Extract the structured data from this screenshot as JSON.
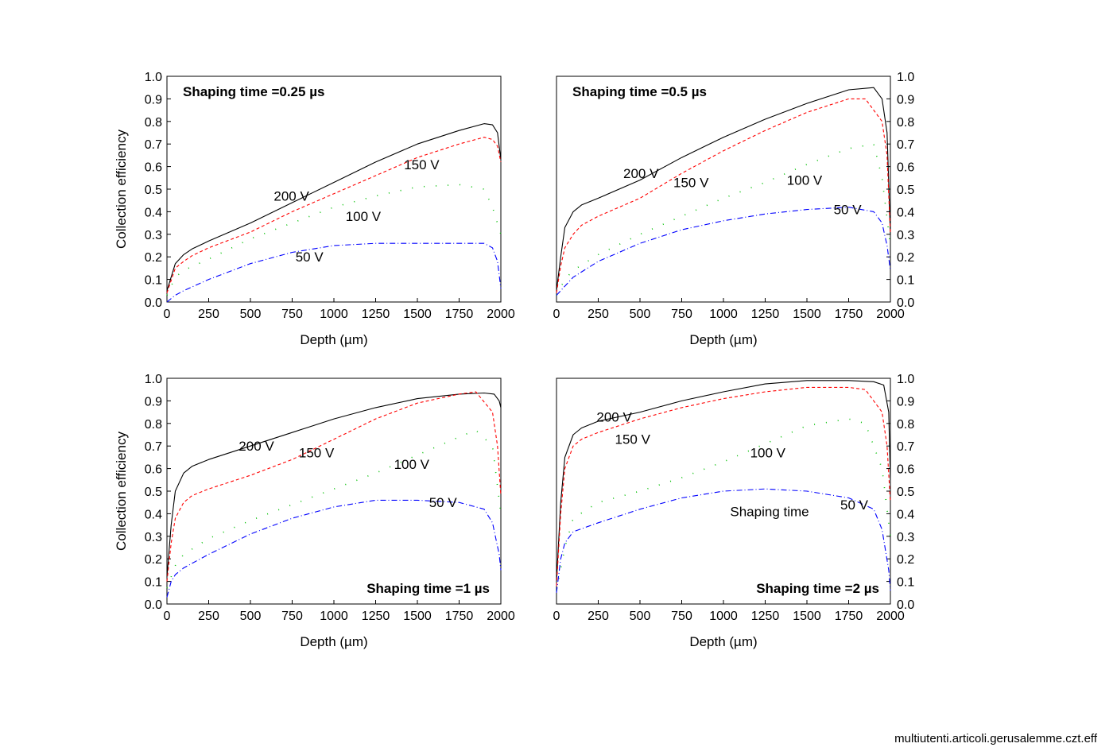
{
  "footer": "multiutenti.articoli.gerusalemme.czt.eff",
  "colors": {
    "200 V": "#000000",
    "150 V": "#ff0000",
    "100 V": "#00c000",
    "50 V": "#0000ff"
  },
  "chart_data": [
    {
      "type": "line",
      "title": "Shaping time =0.25 µs",
      "title_position": "top-left",
      "xlabel": "Depth (µm)",
      "ylabel": "Collection efficiency",
      "xlim": [
        0,
        2000
      ],
      "ylim": [
        0,
        1.0
      ],
      "xticks": [
        0,
        250,
        500,
        750,
        1000,
        1250,
        1500,
        1750,
        2000
      ],
      "yticks": [
        0.0,
        0.1,
        0.2,
        0.3,
        0.4,
        0.5,
        0.6,
        0.7,
        0.8,
        0.9,
        1.0
      ],
      "y_axis_side": "left",
      "series": [
        {
          "name": "200 V",
          "x": [
            0,
            50,
            100,
            150,
            250,
            500,
            750,
            1000,
            1250,
            1500,
            1750,
            1900,
            1950,
            1980,
            2000
          ],
          "y": [
            0.05,
            0.17,
            0.21,
            0.235,
            0.27,
            0.35,
            0.44,
            0.53,
            0.62,
            0.7,
            0.76,
            0.79,
            0.785,
            0.75,
            0.63
          ]
        },
        {
          "name": "150 V",
          "x": [
            0,
            50,
            100,
            150,
            250,
            500,
            750,
            1000,
            1250,
            1500,
            1750,
            1900,
            1950,
            1980,
            2000
          ],
          "y": [
            0.04,
            0.15,
            0.18,
            0.205,
            0.24,
            0.31,
            0.4,
            0.48,
            0.56,
            0.64,
            0.7,
            0.73,
            0.72,
            0.69,
            0.62
          ]
        },
        {
          "name": "100 V",
          "x": [
            0,
            50,
            100,
            250,
            500,
            750,
            1000,
            1250,
            1500,
            1750,
            1900,
            1950,
            2000
          ],
          "y": [
            0.03,
            0.11,
            0.14,
            0.19,
            0.28,
            0.35,
            0.42,
            0.47,
            0.51,
            0.52,
            0.5,
            0.42,
            0.3
          ]
        },
        {
          "name": "50 V",
          "x": [
            0,
            50,
            100,
            250,
            500,
            750,
            1000,
            1250,
            1500,
            1750,
            1900,
            1950,
            1980,
            2000
          ],
          "y": [
            0.0,
            0.03,
            0.05,
            0.1,
            0.17,
            0.22,
            0.25,
            0.26,
            0.26,
            0.26,
            0.26,
            0.24,
            0.18,
            0.06
          ]
        }
      ],
      "annotations": [
        {
          "text": "200 V",
          "x": 640,
          "y": 0.47
        },
        {
          "text": "150 V",
          "x": 1420,
          "y": 0.61
        },
        {
          "text": "100 V",
          "x": 1070,
          "y": 0.38
        },
        {
          "text": "50 V",
          "x": 770,
          "y": 0.2
        }
      ]
    },
    {
      "type": "line",
      "title": "Shaping time =0.5 µs",
      "title_position": "top-left",
      "xlabel": "Depth (µm)",
      "ylabel": "",
      "xlim": [
        0,
        2000
      ],
      "ylim": [
        0,
        1.0
      ],
      "xticks": [
        0,
        250,
        500,
        750,
        1000,
        1250,
        1500,
        1750,
        2000
      ],
      "yticks": [
        0.0,
        0.1,
        0.2,
        0.3,
        0.4,
        0.5,
        0.6,
        0.7,
        0.8,
        0.9,
        1.0
      ],
      "y_axis_side": "right",
      "series": [
        {
          "name": "200 V",
          "x": [
            0,
            25,
            50,
            100,
            150,
            250,
            500,
            750,
            1000,
            1250,
            1500,
            1750,
            1900,
            1950,
            1980,
            2000
          ],
          "y": [
            0.05,
            0.2,
            0.33,
            0.4,
            0.43,
            0.46,
            0.54,
            0.64,
            0.73,
            0.81,
            0.88,
            0.94,
            0.95,
            0.9,
            0.75,
            0.3
          ]
        },
        {
          "name": "150 V",
          "x": [
            0,
            25,
            50,
            100,
            150,
            250,
            500,
            750,
            1000,
            1250,
            1500,
            1750,
            1850,
            1950,
            1980,
            2000
          ],
          "y": [
            0.04,
            0.16,
            0.24,
            0.3,
            0.34,
            0.38,
            0.46,
            0.57,
            0.67,
            0.76,
            0.84,
            0.9,
            0.9,
            0.8,
            0.65,
            0.3
          ]
        },
        {
          "name": "100 V",
          "x": [
            0,
            50,
            100,
            250,
            500,
            750,
            1000,
            1250,
            1500,
            1750,
            1900,
            1950,
            2000
          ],
          "y": [
            0.03,
            0.1,
            0.14,
            0.21,
            0.3,
            0.38,
            0.46,
            0.53,
            0.61,
            0.68,
            0.7,
            0.55,
            0.25
          ]
        },
        {
          "name": "50 V",
          "x": [
            0,
            50,
            100,
            250,
            500,
            750,
            1000,
            1250,
            1500,
            1750,
            1900,
            1950,
            1980,
            2000
          ],
          "y": [
            0.03,
            0.07,
            0.11,
            0.18,
            0.26,
            0.32,
            0.36,
            0.39,
            0.41,
            0.42,
            0.4,
            0.35,
            0.25,
            0.14
          ]
        }
      ],
      "annotations": [
        {
          "text": "200 V",
          "x": 400,
          "y": 0.57
        },
        {
          "text": "150 V",
          "x": 700,
          "y": 0.53
        },
        {
          "text": "100 V",
          "x": 1380,
          "y": 0.54
        },
        {
          "text": "50 V",
          "x": 1660,
          "y": 0.41
        }
      ]
    },
    {
      "type": "line",
      "title": "Shaping time =1 µs",
      "title_position": "bottom-right",
      "xlabel": "Depth (µm)",
      "ylabel": "Collection efficiency",
      "xlim": [
        0,
        2000
      ],
      "ylim": [
        0,
        1.0
      ],
      "xticks": [
        0,
        250,
        500,
        750,
        1000,
        1250,
        1500,
        1750,
        2000
      ],
      "yticks": [
        0.0,
        0.1,
        0.2,
        0.3,
        0.4,
        0.5,
        0.6,
        0.7,
        0.8,
        0.9,
        1.0
      ],
      "y_axis_side": "left",
      "series": [
        {
          "name": "200 V",
          "x": [
            0,
            25,
            50,
            100,
            150,
            250,
            500,
            750,
            1000,
            1250,
            1500,
            1750,
            1900,
            1960,
            1990,
            2000
          ],
          "y": [
            0.12,
            0.35,
            0.5,
            0.58,
            0.61,
            0.64,
            0.7,
            0.76,
            0.82,
            0.87,
            0.91,
            0.93,
            0.935,
            0.93,
            0.9,
            0.87
          ]
        },
        {
          "name": "150 V",
          "x": [
            0,
            25,
            50,
            100,
            150,
            250,
            500,
            750,
            1000,
            1250,
            1500,
            1750,
            1850,
            1950,
            1980,
            2000
          ],
          "y": [
            0.1,
            0.27,
            0.38,
            0.45,
            0.48,
            0.51,
            0.57,
            0.64,
            0.73,
            0.82,
            0.89,
            0.93,
            0.94,
            0.85,
            0.7,
            0.48
          ]
        },
        {
          "name": "100 V",
          "x": [
            0,
            50,
            100,
            250,
            500,
            750,
            1000,
            1250,
            1500,
            1750,
            1850,
            1950,
            2000
          ],
          "y": [
            0.07,
            0.17,
            0.22,
            0.29,
            0.37,
            0.44,
            0.51,
            0.58,
            0.66,
            0.74,
            0.77,
            0.7,
            0.4
          ]
        },
        {
          "name": "50 V",
          "x": [
            0,
            25,
            50,
            100,
            250,
            500,
            750,
            1000,
            1250,
            1500,
            1750,
            1900,
            1950,
            1990,
            2000
          ],
          "y": [
            0.03,
            0.1,
            0.13,
            0.16,
            0.22,
            0.31,
            0.38,
            0.43,
            0.46,
            0.46,
            0.45,
            0.42,
            0.36,
            0.22,
            0.15
          ]
        }
      ],
      "annotations": [
        {
          "text": "200 V",
          "x": 430,
          "y": 0.7
        },
        {
          "text": "150 V",
          "x": 790,
          "y": 0.67
        },
        {
          "text": "100 V",
          "x": 1360,
          "y": 0.62
        },
        {
          "text": "50 V",
          "x": 1570,
          "y": 0.45
        }
      ]
    },
    {
      "type": "line",
      "title": "Shaping time =2 µs",
      "title_position": "bottom-right",
      "xlabel": "Depth (µm)",
      "ylabel": "",
      "xlim": [
        0,
        2000
      ],
      "ylim": [
        0,
        1.0
      ],
      "xticks": [
        0,
        250,
        500,
        750,
        1000,
        1250,
        1500,
        1750,
        2000
      ],
      "yticks": [
        0.0,
        0.1,
        0.2,
        0.3,
        0.4,
        0.5,
        0.6,
        0.7,
        0.8,
        0.9,
        1.0
      ],
      "y_axis_side": "right",
      "series": [
        {
          "name": "200 V",
          "x": [
            0,
            25,
            50,
            100,
            150,
            250,
            500,
            750,
            1000,
            1250,
            1500,
            1750,
            1900,
            1960,
            1990,
            2000
          ],
          "y": [
            0.1,
            0.45,
            0.65,
            0.75,
            0.78,
            0.81,
            0.85,
            0.9,
            0.94,
            0.975,
            0.99,
            0.99,
            0.985,
            0.97,
            0.85,
            0.55
          ]
        },
        {
          "name": "150 V",
          "x": [
            0,
            25,
            50,
            100,
            150,
            250,
            500,
            750,
            1000,
            1250,
            1500,
            1750,
            1850,
            1950,
            1980,
            2000
          ],
          "y": [
            0.08,
            0.4,
            0.6,
            0.7,
            0.73,
            0.76,
            0.82,
            0.87,
            0.91,
            0.94,
            0.96,
            0.96,
            0.95,
            0.85,
            0.7,
            0.45
          ]
        },
        {
          "name": "100 V",
          "x": [
            0,
            50,
            100,
            250,
            500,
            750,
            1000,
            1250,
            1500,
            1750,
            1850,
            1950,
            2000
          ],
          "y": [
            0.06,
            0.25,
            0.38,
            0.45,
            0.5,
            0.56,
            0.63,
            0.71,
            0.79,
            0.82,
            0.8,
            0.6,
            0.3
          ]
        },
        {
          "name": "50 V",
          "x": [
            0,
            25,
            50,
            100,
            250,
            500,
            750,
            1000,
            1250,
            1500,
            1750,
            1900,
            1950,
            1990,
            2000
          ],
          "y": [
            0.05,
            0.2,
            0.27,
            0.32,
            0.36,
            0.42,
            0.47,
            0.5,
            0.51,
            0.5,
            0.47,
            0.42,
            0.33,
            0.15,
            0.06
          ]
        }
      ],
      "annotations": [
        {
          "text": "200 V",
          "x": 240,
          "y": 0.83
        },
        {
          "text": "150 V",
          "x": 350,
          "y": 0.73
        },
        {
          "text": "100 V",
          "x": 1160,
          "y": 0.67
        },
        {
          "text": "Shaping time",
          "x": 1040,
          "y": 0.41
        },
        {
          "text": "50 V",
          "x": 1700,
          "y": 0.44
        }
      ]
    }
  ]
}
